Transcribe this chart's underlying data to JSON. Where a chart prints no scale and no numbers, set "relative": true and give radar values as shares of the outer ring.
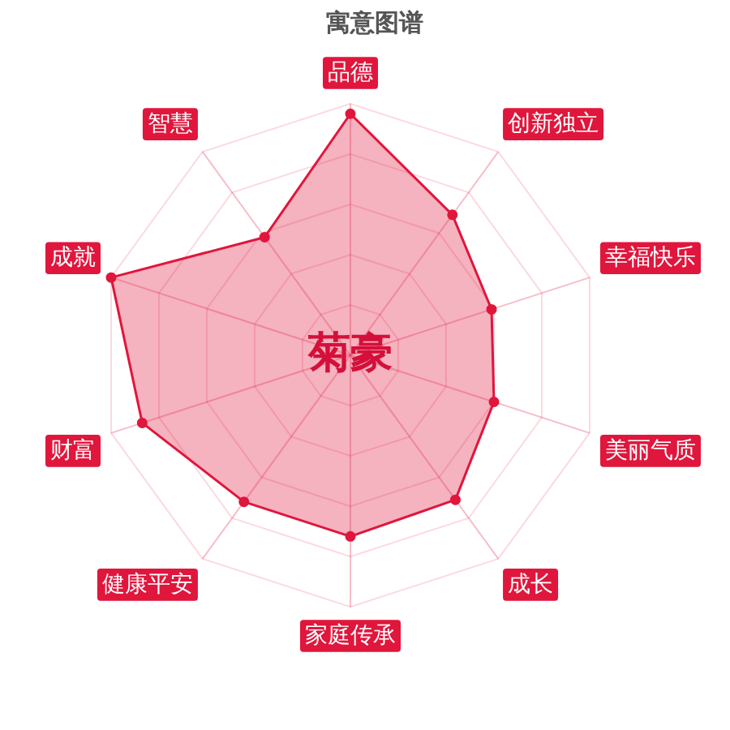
{
  "chart_data": {
    "type": "radar",
    "title": "寓意图谱",
    "categories": [
      "品德",
      "创新独立",
      "幸福快乐",
      "美丽气质",
      "成长",
      "家庭传承",
      "健康平安",
      "财富",
      "成就",
      "智慧"
    ],
    "series": [
      {
        "color": "#e0163c",
        "values": [
          0.96,
          0.69,
          0.59,
          0.6,
          0.71,
          0.72,
          0.72,
          0.87,
          1.0,
          0.58
        ]
      }
    ],
    "relative": true,
    "annotations": [
      "菊豪"
    ],
    "marker": "circle",
    "grid": true
  }
}
